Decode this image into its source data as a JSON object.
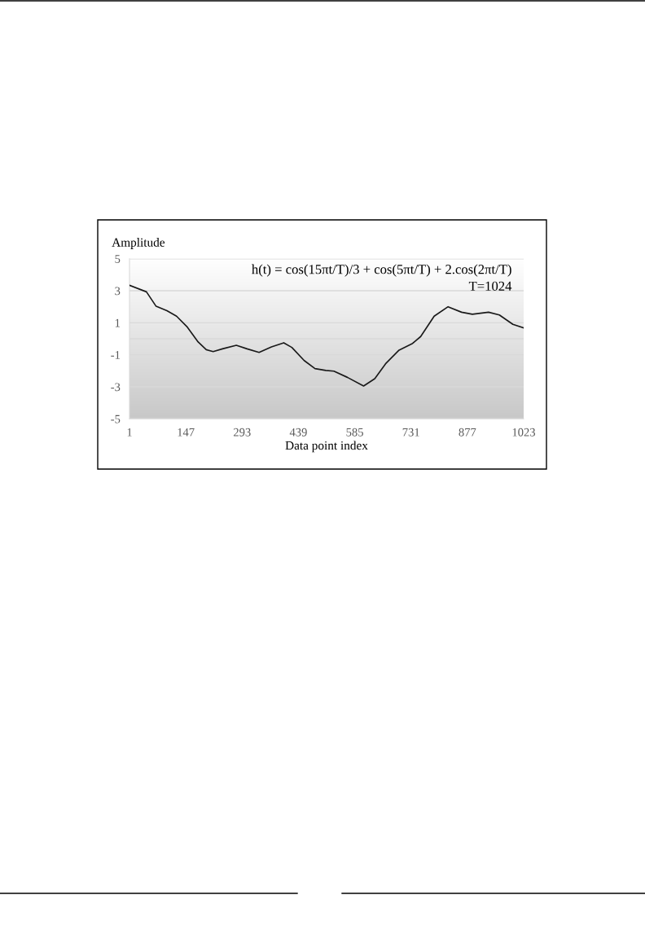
{
  "chart_data": {
    "type": "line",
    "xlabel": "Data point index",
    "ylabel": "Amplitude",
    "annotations": [
      "h(t) = cos(15πt/T)/3 + cos(5πt/T) + 2.cos(2πt/T)",
      "T=1024"
    ],
    "series": [
      {
        "color": "#1a1a1a",
        "x": [
          1,
          45,
          70,
          98,
          123,
          151,
          179,
          200,
          218,
          242,
          278,
          306,
          337,
          369,
          401,
          422,
          454,
          482,
          510,
          531,
          566,
          608,
          637,
          665,
          700,
          735,
          756,
          791,
          827,
          862,
          890,
          932,
          960,
          995,
          1023
        ],
        "values": [
          3.34,
          2.93,
          2.03,
          1.75,
          1.41,
          0.73,
          -0.2,
          -0.68,
          -0.8,
          -0.63,
          -0.41,
          -0.63,
          -0.85,
          -0.51,
          -0.25,
          -0.54,
          -1.36,
          -1.86,
          -1.98,
          -2.02,
          -2.41,
          -2.95,
          -2.49,
          -1.56,
          -0.71,
          -0.29,
          0.14,
          1.41,
          2.0,
          1.66,
          1.53,
          1.66,
          1.49,
          0.9,
          0.68
        ]
      }
    ],
    "xlim": [
      1,
      1023
    ],
    "xticks": [
      1,
      147,
      293,
      439,
      585,
      731,
      877,
      1023
    ],
    "ylim": [
      -5,
      5
    ],
    "yticks": [
      5,
      3,
      1,
      -1,
      -3,
      -5
    ],
    "ref_lines": [
      {
        "axis": "y",
        "value": 0,
        "color": "#d9d9d9"
      }
    ],
    "grid": "y",
    "marker": "none",
    "line_style": "solid"
  }
}
